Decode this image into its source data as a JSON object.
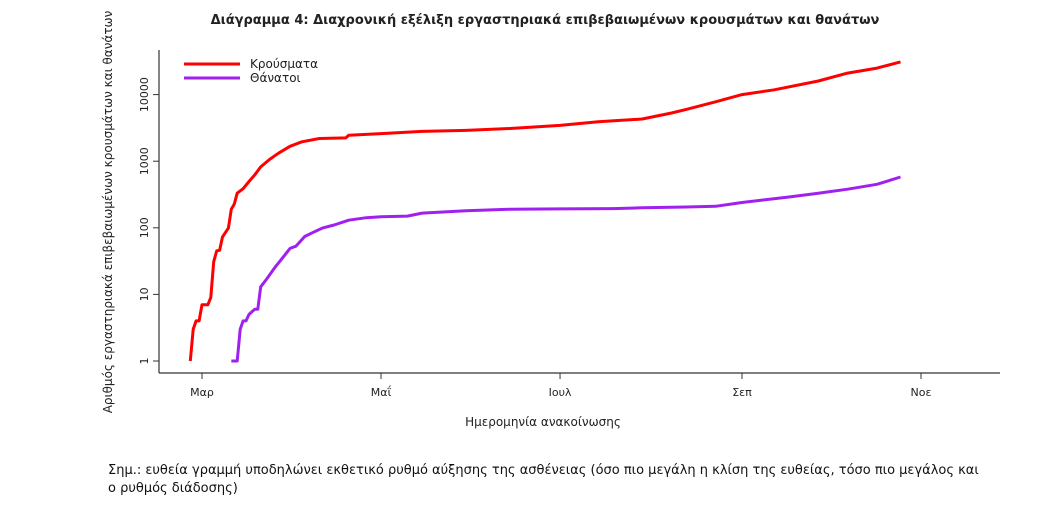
{
  "chart_data": {
    "type": "line",
    "title": "Διάγραμμα 4: Διαχρονική εξέλιξη εργαστηριακά επιβεβαιωμένων κρουσμάτων και θανάτων",
    "xlabel": "Ημερομηνία ανακοίνωσης",
    "ylabel": "Αριθμός εργαστηριακά επιβεβαιωμένων κρουσμάτων και θανάτων",
    "y_scale": "log",
    "ylim": [
      0.8,
      60000
    ],
    "xlim_days_from_mar1": [
      -15,
      250
    ],
    "x_ticks": [
      {
        "day": 0,
        "label": "Μαρ"
      },
      {
        "day": 61,
        "label": "Μαΐ"
      },
      {
        "day": 122,
        "label": "Ιουλ"
      },
      {
        "day": 184,
        "label": "Σεπ"
      },
      {
        "day": 245,
        "label": "Νοε"
      }
    ],
    "y_ticks": [
      {
        "value": 1,
        "label": "1"
      },
      {
        "value": 10,
        "label": "10"
      },
      {
        "value": 100,
        "label": "100"
      },
      {
        "value": 1000,
        "label": "1000"
      },
      {
        "value": 10000,
        "label": "10000"
      }
    ],
    "legend_position": "top-left",
    "series": [
      {
        "name": "Κρούσματα",
        "color": "#ff0000",
        "points": [
          [
            -4,
            1
          ],
          [
            -3,
            3
          ],
          [
            -2,
            4
          ],
          [
            -1,
            4
          ],
          [
            0,
            7
          ],
          [
            2,
            7
          ],
          [
            3,
            9
          ],
          [
            4,
            31
          ],
          [
            5,
            45
          ],
          [
            6,
            46
          ],
          [
            7,
            73
          ],
          [
            9,
            99
          ],
          [
            10,
            190
          ],
          [
            11,
            228
          ],
          [
            12,
            331
          ],
          [
            14,
            387
          ],
          [
            16,
            495
          ],
          [
            18,
            624
          ],
          [
            20,
            821
          ],
          [
            23,
            1061
          ],
          [
            26,
            1314
          ],
          [
            30,
            1673
          ],
          [
            34,
            1955
          ],
          [
            40,
            2192
          ],
          [
            49,
            2235
          ],
          [
            50,
            2450
          ],
          [
            61,
            2600
          ],
          [
            75,
            2800
          ],
          [
            90,
            2900
          ],
          [
            105,
            3100
          ],
          [
            122,
            3450
          ],
          [
            135,
            3900
          ],
          [
            150,
            4300
          ],
          [
            160,
            5300
          ],
          [
            165,
            6000
          ],
          [
            175,
            7800
          ],
          [
            184,
            10000
          ],
          [
            195,
            11800
          ],
          [
            210,
            16000
          ],
          [
            220,
            21000
          ],
          [
            230,
            25000
          ],
          [
            238,
            31000
          ]
        ]
      },
      {
        "name": "Θάνατοι",
        "color": "#a020f0",
        "points": [
          [
            10,
            1
          ],
          [
            12,
            1
          ],
          [
            13,
            3
          ],
          [
            14,
            4
          ],
          [
            15,
            4
          ],
          [
            16,
            5
          ],
          [
            18,
            6
          ],
          [
            19,
            6
          ],
          [
            20,
            13
          ],
          [
            22,
            17
          ],
          [
            25,
            26
          ],
          [
            28,
            38
          ],
          [
            30,
            49
          ],
          [
            32,
            53
          ],
          [
            35,
            74
          ],
          [
            38,
            86
          ],
          [
            41,
            99
          ],
          [
            45,
            110
          ],
          [
            50,
            130
          ],
          [
            56,
            142
          ],
          [
            61,
            147
          ],
          [
            70,
            150
          ],
          [
            75,
            166
          ],
          [
            90,
            180
          ],
          [
            105,
            190
          ],
          [
            122,
            192
          ],
          [
            140,
            194
          ],
          [
            150,
            200
          ],
          [
            165,
            205
          ],
          [
            175,
            210
          ],
          [
            184,
            240
          ],
          [
            200,
            290
          ],
          [
            210,
            330
          ],
          [
            220,
            380
          ],
          [
            230,
            450
          ],
          [
            238,
            580
          ]
        ]
      }
    ]
  },
  "note": "Σημ.: ευθεία γραμμή υποδηλώνει εκθετικό ρυθμό αύξησης της ασθένειας (όσο πιο μεγάλη η κλίση της ευθείας, τόσο πιο μεγάλος και ο ρυθμός διάδοσης)"
}
